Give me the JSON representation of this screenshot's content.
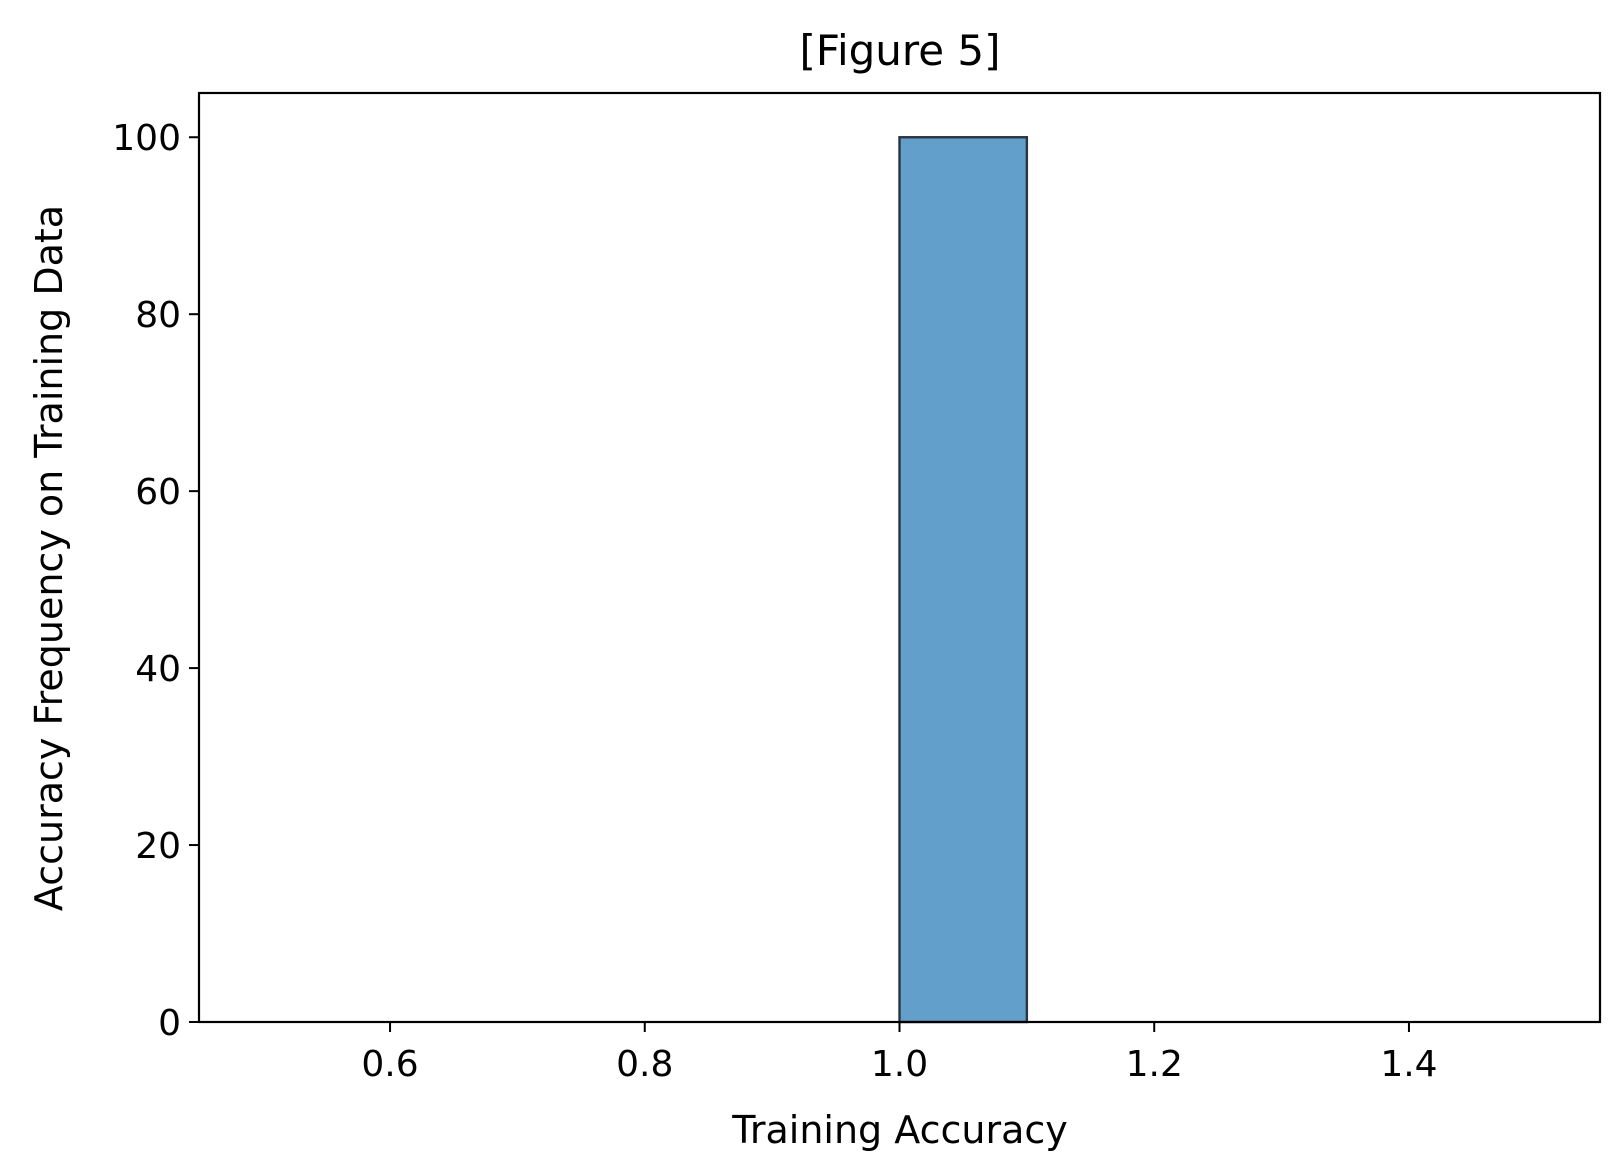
{
  "chart_data": {
    "type": "bar",
    "title": "[Figure 5]",
    "xlabel": "Training Accuracy",
    "ylabel": "Accuracy Frequency on Training Data",
    "xlim": [
      0.45,
      1.55
    ],
    "ylim": [
      0,
      105
    ],
    "x_ticks": [
      0.6,
      0.8,
      1.0,
      1.2,
      1.4
    ],
    "x_tick_labels": [
      "0.6",
      "0.8",
      "1.0",
      "1.2",
      "1.4"
    ],
    "y_ticks": [
      0,
      20,
      40,
      60,
      80,
      100
    ],
    "y_tick_labels": [
      "0",
      "20",
      "40",
      "60",
      "80",
      "100"
    ],
    "bins": [
      {
        "x0": 0.5,
        "x1": 0.6,
        "count": 0
      },
      {
        "x0": 0.6,
        "x1": 0.7,
        "count": 0
      },
      {
        "x0": 0.7,
        "x1": 0.8,
        "count": 0
      },
      {
        "x0": 0.8,
        "x1": 0.9,
        "count": 0
      },
      {
        "x0": 0.9,
        "x1": 1.0,
        "count": 0
      },
      {
        "x0": 1.0,
        "x1": 1.1,
        "count": 100
      },
      {
        "x0": 1.1,
        "x1": 1.2,
        "count": 0
      },
      {
        "x0": 1.2,
        "x1": 1.3,
        "count": 0
      },
      {
        "x0": 1.3,
        "x1": 1.4,
        "count": 0
      },
      {
        "x0": 1.4,
        "x1": 1.5,
        "count": 0
      }
    ],
    "bar_color": "#62a0cb",
    "bar_edge_color": "#2b3440",
    "grid": false,
    "legend": "none"
  }
}
